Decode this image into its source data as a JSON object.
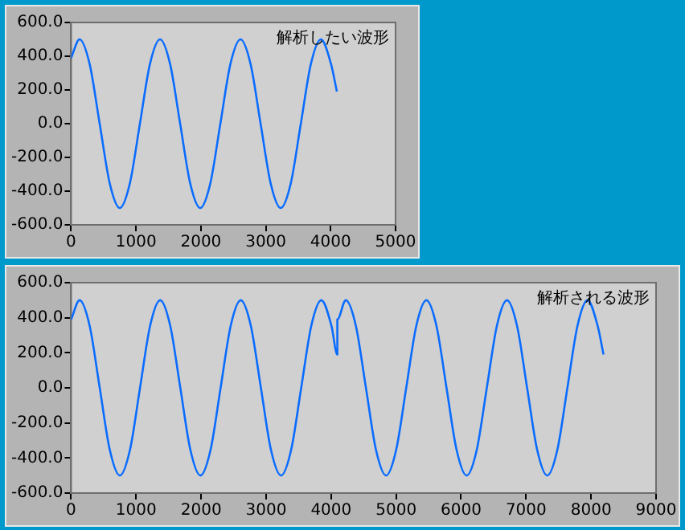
{
  "chart_data": [
    {
      "type": "line",
      "title": "解析したい波形",
      "x": [
        0,
        130,
        285,
        440,
        595,
        750,
        905,
        1060,
        1215,
        1370,
        1525,
        1680,
        1835,
        1990,
        2145,
        2300,
        2455,
        2610,
        2765,
        2920,
        3075,
        3230,
        3385,
        3540,
        3695,
        3850,
        4005,
        4096
      ],
      "series": [
        {
          "color": "#0a6cff",
          "values": [
            390,
            500,
            354,
            0,
            -354,
            -500,
            -354,
            0,
            354,
            500,
            354,
            0,
            -354,
            -500,
            -354,
            0,
            354,
            500,
            354,
            0,
            -354,
            -500,
            -354,
            0,
            354,
            500,
            354,
            190
          ]
        }
      ],
      "xlim": [
        0,
        5000
      ],
      "xticks": [
        0,
        1000,
        2000,
        3000,
        4000,
        5000
      ],
      "ylim": [
        -600,
        600
      ],
      "yticks": [
        {
          "value": 600,
          "label": "600.0"
        },
        {
          "value": 400,
          "label": "400.0"
        },
        {
          "value": 200,
          "label": "200.0"
        },
        {
          "value": 0,
          "label": "0.0"
        },
        {
          "value": -200,
          "label": "-200.0"
        },
        {
          "value": -400,
          "label": "-400.0"
        },
        {
          "value": -600,
          "label": "-600.0"
        }
      ],
      "grid": false,
      "legend": false
    },
    {
      "type": "line",
      "title": "解析される波形",
      "x": [
        0,
        130,
        285,
        440,
        595,
        750,
        905,
        1060,
        1215,
        1370,
        1525,
        1680,
        1835,
        1990,
        2145,
        2300,
        2455,
        2610,
        2765,
        2920,
        3075,
        3230,
        3385,
        3540,
        3695,
        3850,
        4005,
        4096,
        4096,
        4226,
        4381,
        4536,
        4691,
        4846,
        5001,
        5156,
        5311,
        5466,
        5621,
        5776,
        5931,
        6086,
        6241,
        6396,
        6551,
        6706,
        6861,
        7016,
        7171,
        7326,
        7481,
        7636,
        7791,
        7946,
        8101,
        8192
      ],
      "series": [
        {
          "color": "#0a6cff",
          "values": [
            390,
            500,
            354,
            0,
            -354,
            -500,
            -354,
            0,
            354,
            500,
            354,
            0,
            -354,
            -500,
            -354,
            0,
            354,
            500,
            354,
            0,
            -354,
            -500,
            -354,
            0,
            354,
            500,
            354,
            190,
            390,
            500,
            354,
            0,
            -354,
            -500,
            -354,
            0,
            354,
            500,
            354,
            0,
            -354,
            -500,
            -354,
            0,
            354,
            500,
            354,
            0,
            -354,
            -500,
            -354,
            0,
            354,
            500,
            354,
            190
          ]
        }
      ],
      "xlim": [
        0,
        9000
      ],
      "xticks": [
        0,
        1000,
        2000,
        3000,
        4000,
        5000,
        6000,
        7000,
        8000,
        9000
      ],
      "ylim": [
        -600,
        600
      ],
      "yticks": [
        {
          "value": 600,
          "label": "600.0"
        },
        {
          "value": 400,
          "label": "400.0"
        },
        {
          "value": 200,
          "label": "200.0"
        },
        {
          "value": 0,
          "label": "0.0"
        },
        {
          "value": -200,
          "label": "-200.0"
        },
        {
          "value": -400,
          "label": "-400.0"
        },
        {
          "value": -600,
          "label": "-600.0"
        }
      ],
      "grid": false,
      "legend": false
    }
  ]
}
